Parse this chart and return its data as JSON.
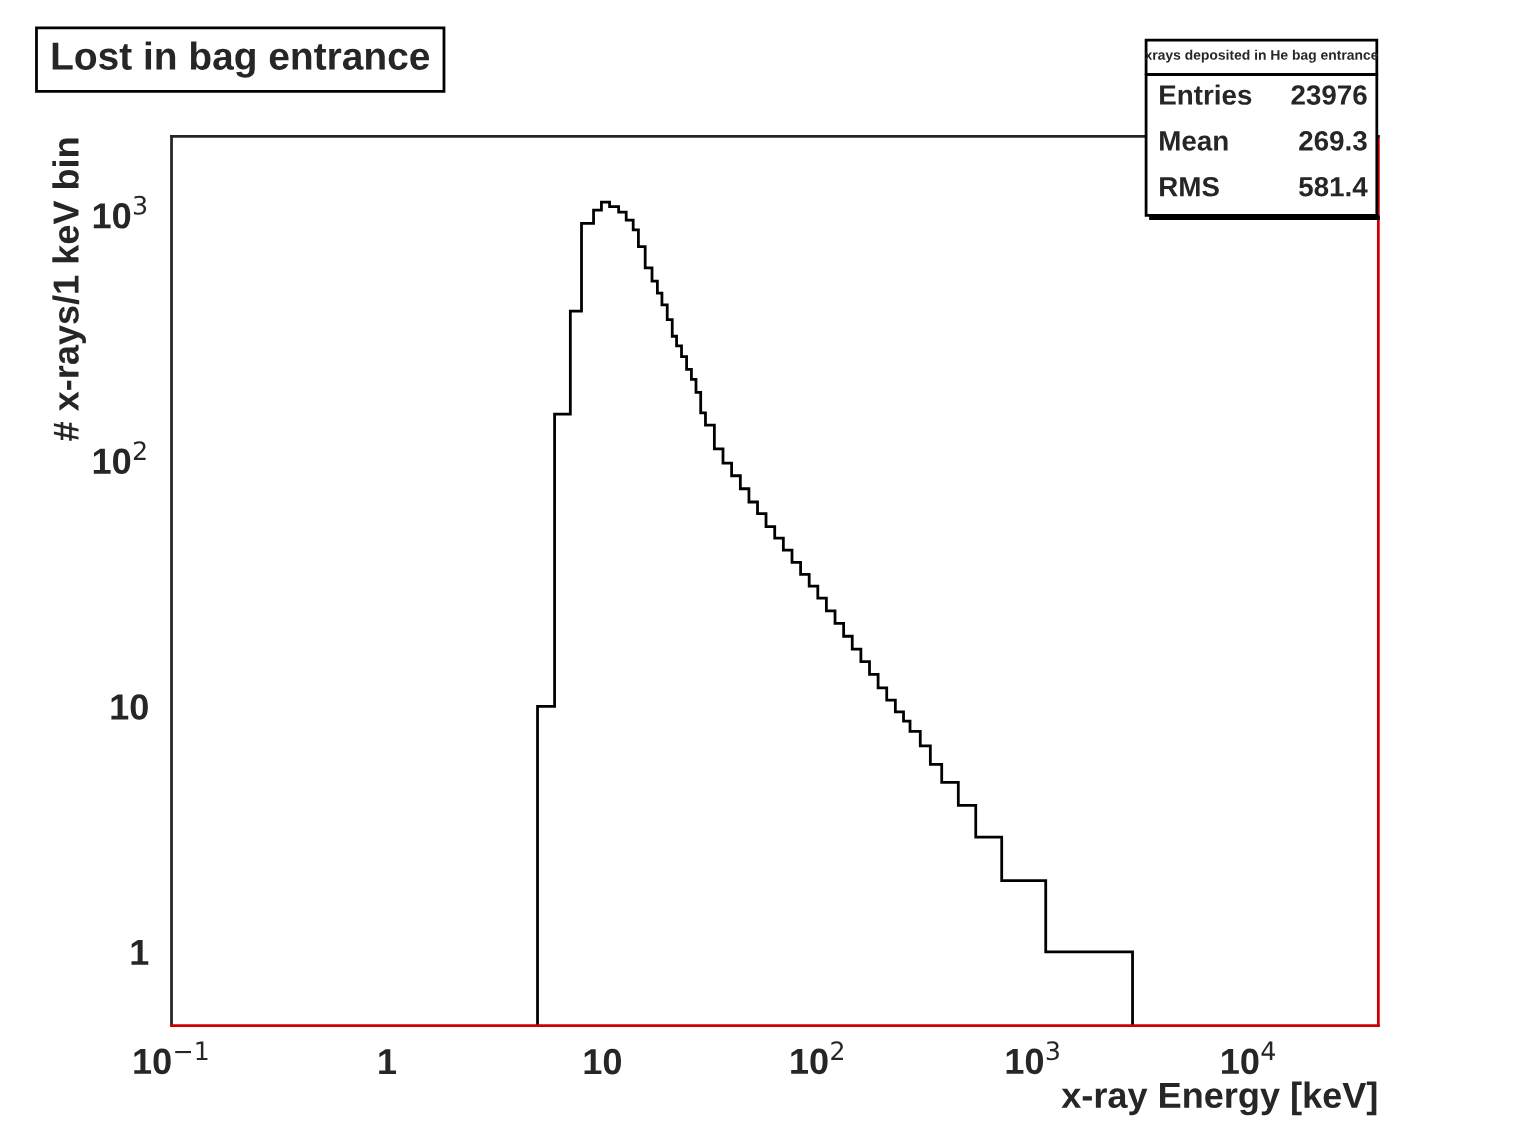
{
  "chart_data": {
    "type": "histogram",
    "title": "Lost in bag entrance",
    "xlabel": "x-ray Energy [keV]",
    "ylabel": "# x-rays/1 keV bin",
    "annotations": [
      "xrays deposited in He bag entrance",
      "Entries",
      "23976",
      "Mean",
      "269.3",
      "RMS",
      "581.4"
    ],
    "bins": [
      5,
      6,
      7.1,
      8,
      9.1,
      9.9,
      10.8,
      11.9,
      12.9,
      13.9,
      14.7,
      15.8,
      17,
      18,
      18.9,
      20,
      21.1,
      22.1,
      23.3,
      24.6,
      25.9,
      27.2,
      28.6,
      30.1,
      33.1,
      36.3,
      39.8,
      43.7,
      47.9,
      52.5,
      57.5,
      63.1,
      69.2,
      75.9,
      83.2,
      91.2,
      100,
      109.6,
      120.2,
      131.8,
      144.5,
      158.5,
      173.8,
      190.5,
      208.9,
      229.1,
      250,
      268,
      299,
      333,
      376,
      449,
      541,
      714,
      1143,
      2891
    ],
    "values": [
      10,
      155,
      408,
      929,
      1052,
      1133,
      1086,
      1032,
      957,
      873,
      747,
      612,
      540,
      483,
      432,
      376,
      322,
      294,
      266,
      236,
      215,
      190,
      157,
      140,
      112,
      98,
      87,
      77,
      68,
      61,
      54,
      48.5,
      43.3,
      38.6,
      34.5,
      30.9,
      27.6,
      24.5,
      21.8,
      19.3,
      17.1,
      15.2,
      13.5,
      11.9,
      10.6,
      9.5,
      8.7,
      7.9,
      6.9,
      5.8,
      4.9,
      3.95,
      2.93,
      1.95,
      1.0
    ],
    "color": "#000000",
    "log": "xy",
    "xlim": [
      0.1,
      40000
    ],
    "ylim": [
      0.5,
      2100
    ],
    "xticks": [
      {
        "value": 0.1,
        "label": "10$^{−1}$"
      },
      1,
      10,
      {
        "value": 100,
        "label": "10$^{2}$"
      },
      {
        "value": 1000,
        "label": "10$^{3}$"
      },
      {
        "value": 10000,
        "label": "10$^{4}$"
      }
    ],
    "yticks": [
      1,
      10,
      {
        "value": 100,
        "label": "10$^{2}$"
      },
      {
        "value": 1000,
        "label": "10$^{3}$"
      }
    ],
    "grid": false,
    "legend": false
  }
}
